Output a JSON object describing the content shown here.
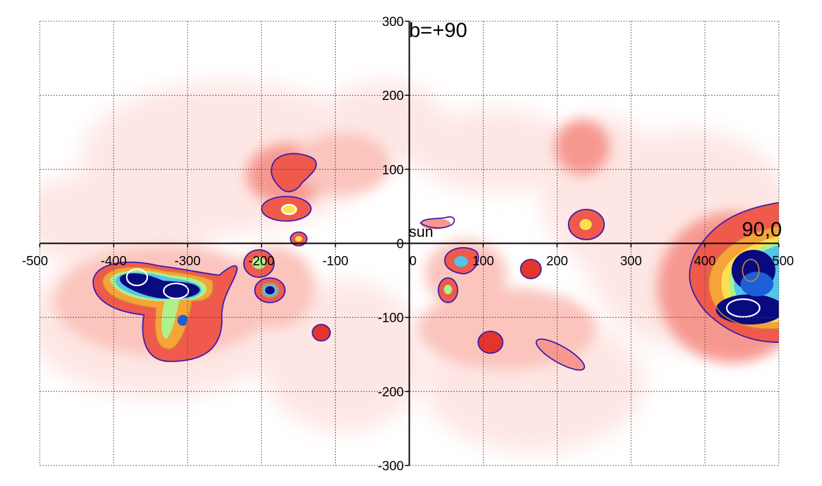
{
  "chart_data": {
    "type": "heatmap",
    "title": "",
    "xlabel": "",
    "ylabel": "",
    "xlim": [
      -500,
      500
    ],
    "ylim": [
      -300,
      300
    ],
    "x_ticks": [
      -500,
      -400,
      -300,
      -200,
      -100,
      0,
      100,
      200,
      300,
      400,
      500
    ],
    "y_ticks": [
      -300,
      -200,
      -100,
      0,
      100,
      200,
      300
    ],
    "x_tick_labels": [
      "-500",
      "-400",
      "-300",
      "-200",
      "-100",
      "0",
      "100",
      "200",
      "300",
      "400",
      "500"
    ],
    "y_tick_labels": [
      "-300",
      "-200",
      "-100",
      "0",
      "100",
      "200",
      "300"
    ],
    "grid": true,
    "colormap": [
      "#ffffff",
      "#fde2df",
      "#fbc4bd",
      "#f79890",
      "#ef5a4c",
      "#e3352a",
      "#f6a33a",
      "#fde050",
      "#aef08a",
      "#52c6e6",
      "#1d5fd6",
      "#0a0a80"
    ],
    "contour_colors": {
      "outer": "#3a1bb0",
      "middle": "#d08a30",
      "inner": "#ffffff"
    },
    "annotations": [
      {
        "text": "b=+90",
        "x": 0,
        "y": 300
      },
      {
        "text": "sun",
        "x": 0,
        "y": 0
      },
      {
        "text": "90,0",
        "x": 450,
        "y": 0
      }
    ],
    "features": [
      {
        "name": "region-left-large",
        "x": -300,
        "y": -70,
        "level": "peak"
      },
      {
        "name": "region-left-upper-blob",
        "x": -360,
        "y": -45,
        "level": "peak"
      },
      {
        "name": "region-left-tail",
        "x": -280,
        "y": -130,
        "level": "high"
      },
      {
        "name": "region-left-200",
        "x": -200,
        "y": -30,
        "level": "high"
      },
      {
        "name": "region-left-190",
        "x": -190,
        "y": -60,
        "level": "peak"
      },
      {
        "name": "region-upper-160-100",
        "x": -160,
        "y": 100,
        "level": "medium"
      },
      {
        "name": "region-upper-160-45",
        "x": -165,
        "y": 45,
        "level": "high"
      },
      {
        "name": "region-150-5",
        "x": -150,
        "y": 5,
        "level": "high"
      },
      {
        "name": "region-120-120",
        "x": -118,
        "y": -122,
        "level": "medium"
      },
      {
        "name": "region-near-sun",
        "x": 40,
        "y": 28,
        "level": "medium"
      },
      {
        "name": "region-70-25",
        "x": 70,
        "y": -25,
        "level": "high"
      },
      {
        "name": "region-55-65",
        "x": 55,
        "y": -62,
        "level": "high"
      },
      {
        "name": "region-110-135",
        "x": 110,
        "y": -135,
        "level": "medium"
      },
      {
        "name": "region-165-35",
        "x": 165,
        "y": -35,
        "level": "medium"
      },
      {
        "name": "region-205-150",
        "x": 205,
        "y": -150,
        "level": "medium"
      },
      {
        "name": "region-240-20",
        "x": 240,
        "y": 20,
        "level": "high"
      },
      {
        "name": "region-230-125",
        "x": 230,
        "y": 125,
        "level": "low"
      },
      {
        "name": "region-right-large",
        "x": 460,
        "y": -60,
        "level": "peak"
      }
    ]
  }
}
